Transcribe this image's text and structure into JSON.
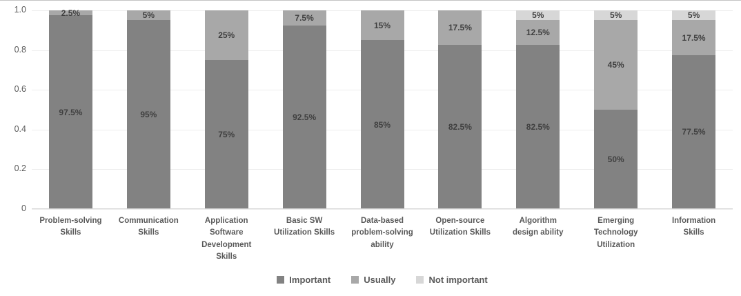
{
  "chart_data": {
    "type": "bar",
    "stacked": true,
    "title": "",
    "xlabel": "",
    "ylabel": "",
    "unit": "%",
    "ylim": [
      0,
      1
    ],
    "grid": true,
    "legend_position": "bottom",
    "categories": [
      "Problem-solving\nSkills",
      "Communication\nSkills",
      "Application\nSoftware\nDevelopment\nSkills",
      "Basic SW\nUtilization Skills",
      "Data-based\nproblem-solving\nability",
      "Open-source\nUtilization Skills",
      "Algorithm\ndesign ability",
      "Emerging\nTechnology\nUtilization",
      "Information\nSkills"
    ],
    "series": [
      {
        "name": "Important",
        "color": "#828282",
        "values": [
          97.5,
          95,
          75,
          92.5,
          85,
          82.5,
          82.5,
          50,
          77.5
        ]
      },
      {
        "name": "Usually",
        "color": "#a8a8a8",
        "values": [
          2.5,
          5,
          25,
          7.5,
          15,
          17.5,
          12.5,
          45,
          17.5
        ]
      },
      {
        "name": "Not important",
        "color": "#d7d7d7",
        "values": [
          0,
          0,
          0,
          0,
          0,
          0,
          5,
          5,
          5
        ]
      }
    ],
    "y_ticks": [
      {
        "label": "1.0",
        "value": 1.0
      },
      {
        "label": "0.8",
        "value": 0.8
      },
      {
        "label": "0.6",
        "value": 0.6
      },
      {
        "label": "0.4",
        "value": 0.4
      },
      {
        "label": "0.2",
        "value": 0.2
      },
      {
        "label": "0",
        "value": 0.0
      }
    ],
    "legend": [
      "Important",
      "Usually",
      "Not important"
    ]
  },
  "colors": {
    "background": "#ffffff",
    "grid": "#ededed",
    "axis_line": "#d6d6d6",
    "data_label": "#3f3f3f",
    "tick_label": "#595959",
    "category_label": "#595959",
    "legend_label": "#595959",
    "top_border": "#c4c4c4"
  }
}
